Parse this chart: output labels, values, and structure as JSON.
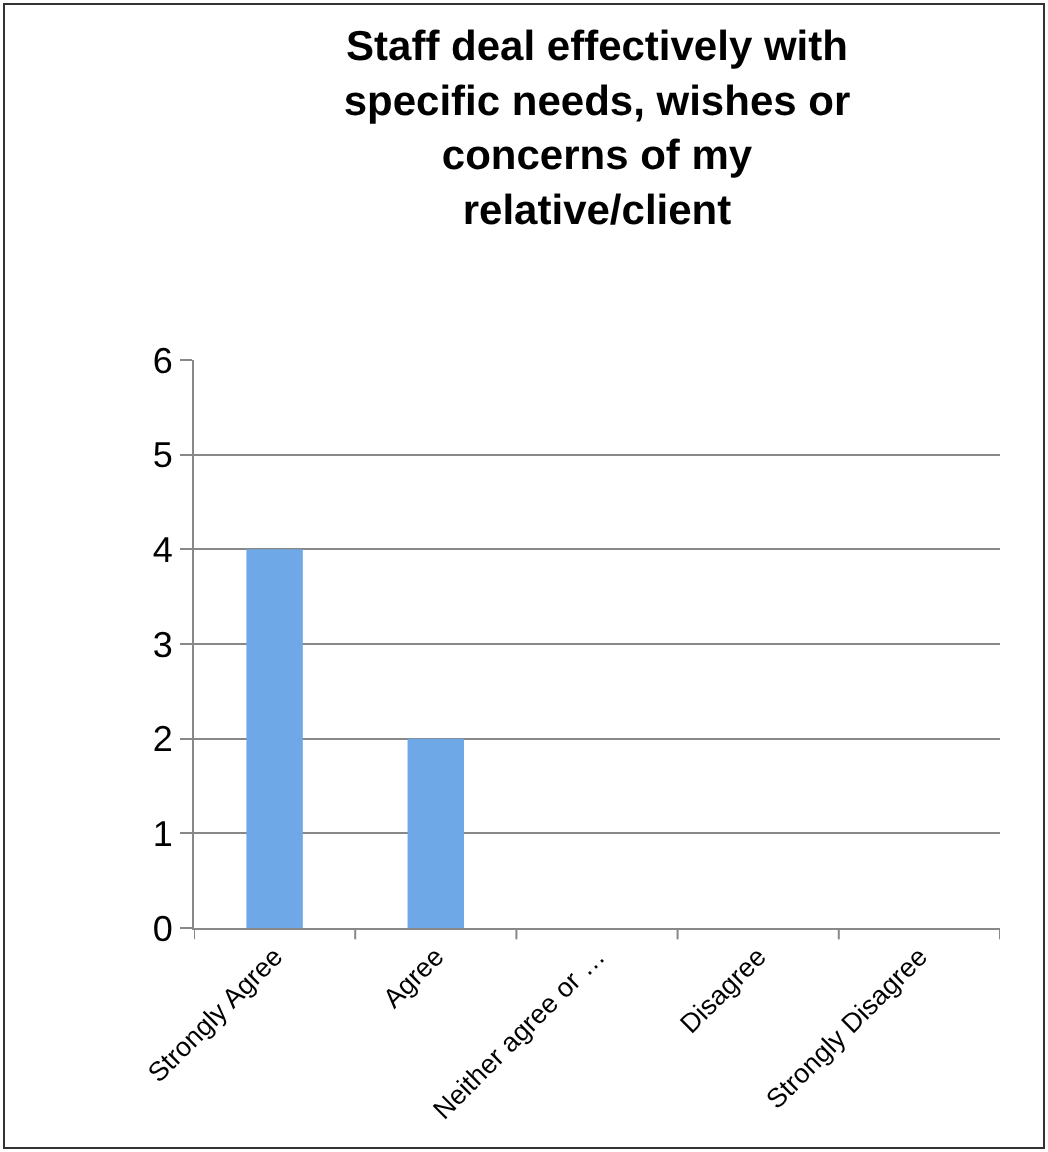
{
  "chart_data": {
    "type": "bar",
    "title": "Staff deal effectively with\nspecific needs, wishes or\nconcerns of my\nrelative/client",
    "categories": [
      "Strongly Agree",
      "Agree",
      "Neither agree or …",
      "Disagree",
      "Strongly Disagree"
    ],
    "values": [
      4,
      2,
      0,
      0,
      0
    ],
    "color": "#6ea8e6",
    "ylim": [
      0,
      6
    ],
    "yticks": [
      0,
      1,
      2,
      3,
      4,
      5,
      6
    ],
    "grid": "y",
    "legend": false
  }
}
